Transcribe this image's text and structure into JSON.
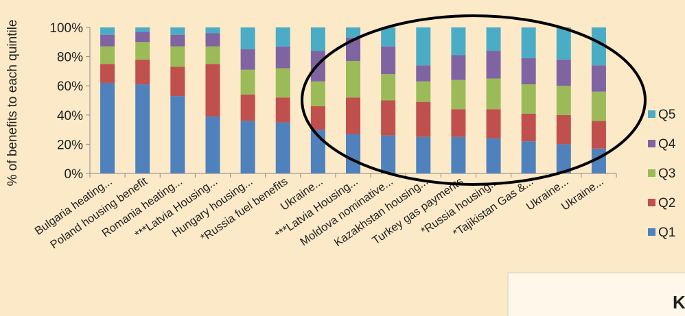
{
  "chart_data": {
    "type": "bar",
    "stacked": true,
    "ylabel": "% of benefits to each quintile",
    "yticks": [
      "0%",
      "20%",
      "40%",
      "60%",
      "80%",
      "100%"
    ],
    "ylim": [
      0,
      100
    ],
    "categories": [
      "Bulgaria heating...",
      "Poland housing benefit",
      "Romania heating...",
      "***Latvia Housing...",
      "Hungary housing...",
      "*Russia fuel benefits",
      "Ukraine...",
      "***Latvia Housing...",
      "Moldova nominative...",
      "Kazakhstan housing...",
      "Turkey gas payments",
      "*Russia housing...",
      "*Tajikistan Gas &...",
      "Ukraine...",
      "Ukraine..."
    ],
    "series": [
      {
        "name": "Q1",
        "color": "#4f81bd",
        "values": [
          62,
          61,
          53,
          39,
          36,
          35,
          30,
          27,
          26,
          25,
          25,
          24,
          22,
          20,
          17
        ]
      },
      {
        "name": "Q2",
        "color": "#c0504d",
        "values": [
          13,
          17,
          20,
          36,
          18,
          17,
          16,
          25,
          24,
          24,
          19,
          20,
          19,
          20,
          19
        ]
      },
      {
        "name": "Q3",
        "color": "#9bbb59",
        "values": [
          12,
          12,
          14,
          12,
          17,
          20,
          17,
          25,
          18,
          14,
          20,
          21,
          20,
          20,
          20
        ]
      },
      {
        "name": "Q4",
        "color": "#8064a2",
        "values": [
          8,
          7,
          8,
          9,
          14,
          15,
          21,
          16,
          19,
          11,
          17,
          19,
          18,
          18,
          18
        ]
      },
      {
        "name": "Q5",
        "color": "#4bacc6",
        "values": [
          5,
          3,
          5,
          4,
          15,
          13,
          16,
          7,
          13,
          26,
          19,
          16,
          21,
          22,
          26
        ]
      }
    ],
    "legend": {
      "placement": "right",
      "order": [
        "Q5",
        "Q4",
        "Q3",
        "Q2",
        "Q1"
      ]
    },
    "annotation": {
      "shape": "ellipse",
      "note": "outline around the right group of bars"
    },
    "grid": false,
    "text_box_partial": "K"
  }
}
